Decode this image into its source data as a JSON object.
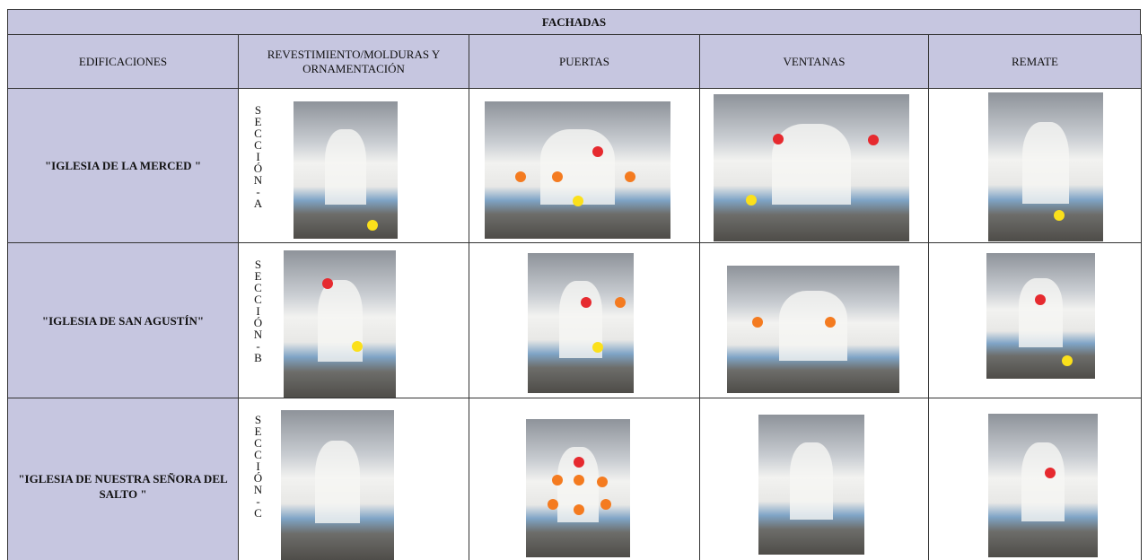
{
  "header": {
    "title": "FACHADAS"
  },
  "table": {
    "columns": [
      "EDIFICACIONES",
      "REVESTIMIENTO/MOLDURAS Y ORNAMENTACIÓN",
      "PUERTAS",
      "VENTANAS",
      "REMATE"
    ],
    "rows": [
      {
        "name": "\"IGLESIA DE LA MERCED \"",
        "section": "SECCIÓN-A"
      },
      {
        "name": "\"IGLESIA DE SAN AGUSTÍN\"",
        "section": "SECCIÓN-B"
      },
      {
        "name": "\"IGLESIA DE NUESTRA SEÑORA DEL SALTO \"",
        "section": "SECCIÓN-C"
      }
    ]
  }
}
